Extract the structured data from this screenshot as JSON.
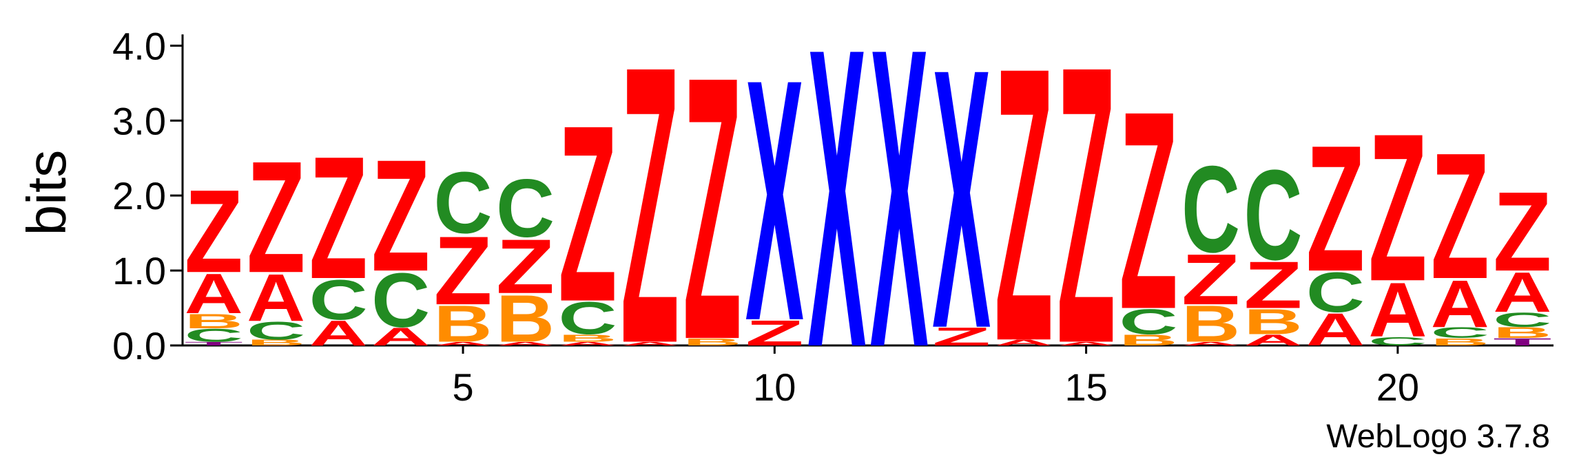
{
  "chart_data": {
    "type": "logo",
    "ylabel": "bits",
    "footnote": "WebLogo 3.7.8",
    "colors": {
      "Z": "#ff0000",
      "A": "#ff0000",
      "C": "#228b22",
      "B": "#ff8c00",
      "X": "#0000ff",
      "T": "#800080"
    },
    "x": [
      1,
      2,
      3,
      4,
      5,
      6,
      7,
      8,
      9,
      10,
      11,
      12,
      13,
      14,
      15,
      16,
      17,
      18,
      19,
      20,
      21,
      22
    ],
    "stacks": [
      [
        {
          "letter": "T",
          "height": 0.05
        },
        {
          "letter": "C",
          "height": 0.18
        },
        {
          "letter": "B",
          "height": 0.2
        },
        {
          "letter": "A",
          "height": 0.55
        },
        {
          "letter": "Z",
          "height": 1.15
        }
      ],
      [
        {
          "letter": "B",
          "height": 0.08
        },
        {
          "letter": "C",
          "height": 0.25
        },
        {
          "letter": "A",
          "height": 0.65
        },
        {
          "letter": "Z",
          "height": 1.55
        }
      ],
      [
        {
          "letter": "A",
          "height": 0.35
        },
        {
          "letter": "C",
          "height": 0.55
        },
        {
          "letter": "Z",
          "height": 1.7
        }
      ],
      [
        {
          "letter": "A",
          "height": 0.25
        },
        {
          "letter": "C",
          "height": 0.75
        },
        {
          "letter": "Z",
          "height": 1.55
        }
      ],
      [
        {
          "letter": "A",
          "height": 0.05
        },
        {
          "letter": "B",
          "height": 0.5
        },
        {
          "letter": "Z",
          "height": 0.95
        },
        {
          "letter": "C",
          "height": 0.85
        }
      ],
      [
        {
          "letter": "A",
          "height": 0.05
        },
        {
          "letter": "B",
          "height": 0.65
        },
        {
          "letter": "Z",
          "height": 0.75
        },
        {
          "letter": "C",
          "height": 0.8
        }
      ],
      [
        {
          "letter": "A",
          "height": 0.05
        },
        {
          "letter": "B",
          "height": 0.1
        },
        {
          "letter": "C",
          "height": 0.45
        },
        {
          "letter": "Z",
          "height": 2.45
        }
      ],
      [
        {
          "letter": "A",
          "height": 0.05
        },
        {
          "letter": "Z",
          "height": 3.85
        }
      ],
      [
        {
          "letter": "B",
          "height": 0.1
        },
        {
          "letter": "Z",
          "height": 3.65
        }
      ],
      [
        {
          "letter": "Z",
          "height": 0.35
        },
        {
          "letter": "X",
          "height": 3.35
        }
      ],
      [
        {
          "letter": "X",
          "height": 4.15
        }
      ],
      [
        {
          "letter": "X",
          "height": 4.15
        }
      ],
      [
        {
          "letter": "Z",
          "height": 0.25
        },
        {
          "letter": "X",
          "height": 3.6
        }
      ],
      [
        {
          "letter": "A",
          "height": 0.08
        },
        {
          "letter": "Z",
          "height": 3.8
        }
      ],
      [
        {
          "letter": "A",
          "height": 0.05
        },
        {
          "letter": "Z",
          "height": 3.85
        }
      ],
      [
        {
          "letter": "B",
          "height": 0.15
        },
        {
          "letter": "C",
          "height": 0.35
        },
        {
          "letter": "Z",
          "height": 2.75
        }
      ],
      [
        {
          "letter": "A",
          "height": 0.05
        },
        {
          "letter": "B",
          "height": 0.5
        },
        {
          "letter": "Z",
          "height": 0.7
        },
        {
          "letter": "C",
          "height": 1.2
        }
      ],
      [
        {
          "letter": "A",
          "height": 0.15
        },
        {
          "letter": "B",
          "height": 0.35
        },
        {
          "letter": "Z",
          "height": 0.65
        },
        {
          "letter": "C",
          "height": 1.25
        }
      ],
      [
        {
          "letter": "A",
          "height": 0.45
        },
        {
          "letter": "C",
          "height": 0.55
        },
        {
          "letter": "Z",
          "height": 1.75
        }
      ],
      [
        {
          "letter": "C",
          "height": 0.12
        },
        {
          "letter": "A",
          "height": 0.75
        },
        {
          "letter": "Z",
          "height": 2.05
        }
      ],
      [
        {
          "letter": "B",
          "height": 0.1
        },
        {
          "letter": "C",
          "height": 0.15
        },
        {
          "letter": "A",
          "height": 0.65
        },
        {
          "letter": "Z",
          "height": 1.75
        }
      ],
      [
        {
          "letter": "T",
          "height": 0.1
        },
        {
          "letter": "B",
          "height": 0.15
        },
        {
          "letter": "C",
          "height": 0.2
        },
        {
          "letter": "A",
          "height": 0.55
        },
        {
          "letter": "Z",
          "height": 1.1
        }
      ]
    ],
    "xlim": [
      0.5,
      22.5
    ],
    "xticks": [
      5,
      10,
      15,
      20
    ],
    "ylim": [
      0,
      4.15
    ],
    "yticks": [
      {
        "value": 0,
        "label": "0.0"
      },
      {
        "value": 1,
        "label": "1.0"
      },
      {
        "value": 2,
        "label": "2.0"
      },
      {
        "value": 3,
        "label": "3.0"
      },
      {
        "value": 4,
        "label": "4.0"
      }
    ]
  }
}
